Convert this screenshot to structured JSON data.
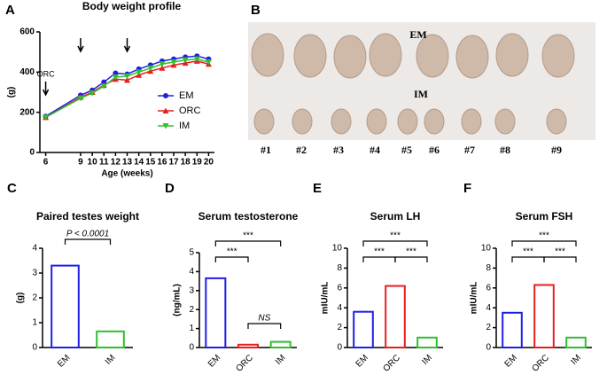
{
  "chart_data": [
    {
      "type": "line",
      "panel": "A",
      "title": "Body weight profile",
      "x_label": "Age (weeks)",
      "y_label": "(g)",
      "x": [
        6,
        9,
        10,
        11,
        12,
        13,
        14,
        15,
        16,
        17,
        18,
        19,
        20
      ],
      "series": [
        {
          "name": "EM",
          "color": "#1f1fe6",
          "values": [
            180,
            285,
            310,
            350,
            395,
            390,
            415,
            435,
            455,
            465,
            475,
            480,
            465
          ]
        },
        {
          "name": "ORC",
          "color": "#e61f1f",
          "values": [
            175,
            275,
            300,
            335,
            365,
            360,
            385,
            405,
            420,
            435,
            445,
            455,
            440
          ]
        },
        {
          "name": "IM",
          "color": "#2fc02f",
          "values": [
            175,
            270,
            295,
            330,
            375,
            380,
            400,
            420,
            440,
            450,
            460,
            465,
            450
          ]
        }
      ],
      "xlim": [
        5.5,
        20.5
      ],
      "xticks": [
        6,
        9,
        10,
        11,
        12,
        13,
        14,
        15,
        16,
        17,
        18,
        19,
        20
      ],
      "ylim": [
        0,
        600
      ],
      "yticks": [
        0,
        200,
        400,
        600
      ],
      "arrows": [
        6,
        9,
        13
      ],
      "arrow_label": "ORC",
      "legend": "right"
    },
    {
      "type": "bar",
      "panel": "C",
      "title": "Paired testes weight",
      "y_label": "(g)",
      "categories": [
        "EM",
        "IM"
      ],
      "values": [
        3.3,
        0.65
      ],
      "colors": [
        "#1f1fe6",
        "#2fc02f"
      ],
      "ylim": [
        0,
        4
      ],
      "yticks": [
        0,
        1,
        2,
        3,
        4
      ],
      "annotations": [
        "P < 0.0001"
      ]
    },
    {
      "type": "bar",
      "panel": "D",
      "title": "Serum testosterone",
      "y_label": "(ng/mL)",
      "categories": [
        "EM",
        "ORC",
        "IM"
      ],
      "values": [
        3.65,
        0.15,
        0.3
      ],
      "colors": [
        "#1f1fe6",
        "#e61f1f",
        "#2fc02f"
      ],
      "ylim": [
        0,
        5
      ],
      "yticks": [
        0,
        1,
        2,
        3,
        4,
        5
      ],
      "annotations": [
        "***",
        "***",
        "NS"
      ]
    },
    {
      "type": "bar",
      "panel": "E",
      "title": "Serum LH",
      "y_label": "mIU/mL",
      "categories": [
        "EM",
        "ORC",
        "IM"
      ],
      "values": [
        3.6,
        6.2,
        1.0
      ],
      "colors": [
        "#1f1fe6",
        "#e61f1f",
        "#2fc02f"
      ],
      "ylim": [
        0,
        10
      ],
      "yticks": [
        0,
        2,
        4,
        6,
        8,
        10
      ],
      "annotations": [
        "***",
        "***",
        "***"
      ]
    },
    {
      "type": "bar",
      "panel": "F",
      "title": "Serum FSH",
      "y_label": "mIU/mL",
      "categories": [
        "EM",
        "ORC",
        "IM"
      ],
      "values": [
        3.5,
        6.3,
        1.0
      ],
      "colors": [
        "#1f1fe6",
        "#e61f1f",
        "#2fc02f"
      ],
      "ylim": [
        0,
        10
      ],
      "yticks": [
        0,
        2,
        4,
        6,
        8,
        10
      ],
      "annotations": [
        "***",
        "***",
        "***"
      ]
    }
  ],
  "photo": {
    "panel": "B",
    "group_labels": [
      "EM",
      "IM"
    ],
    "sample_labels": [
      "#1",
      "#2",
      "#3",
      "#4",
      "#5",
      "#6",
      "#7",
      "#8",
      "#9"
    ]
  }
}
